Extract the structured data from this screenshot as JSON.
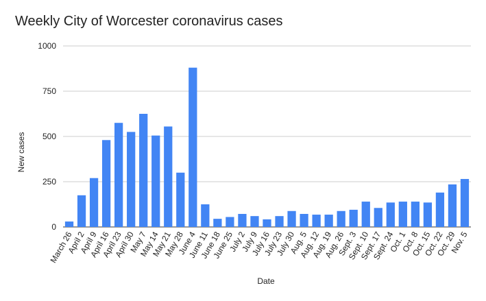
{
  "chart_data": {
    "type": "bar",
    "title": "Weekly City of Worcester coronavirus cases",
    "xlabel": "Date",
    "ylabel": "New cases",
    "ylim": [
      0,
      1000
    ],
    "yticks": [
      0,
      250,
      500,
      750,
      1000
    ],
    "grid": true,
    "legend": "none",
    "bar_color": "#4285f4",
    "categories": [
      "March 26",
      "April 2",
      "April 9",
      "April 16",
      "April 23",
      "April 30",
      "May 7",
      "May 14",
      "May 21",
      "May 28",
      "June 4",
      "June 11",
      "June 18",
      "June 25",
      "July 2",
      "July 9",
      "July 16",
      "July 23",
      "July 30",
      "Aug. 5",
      "Aug. 12",
      "Aug. 19",
      "Aug. 26",
      "Sept. 3",
      "Sept. 10",
      "Sept. 17",
      "Sept. 24",
      "Oct. 1",
      "Oct. 8",
      "Oct. 15",
      "Oct. 22",
      "Oct. 29",
      "Nov. 5"
    ],
    "values": [
      30,
      175,
      270,
      480,
      575,
      525,
      625,
      505,
      555,
      300,
      880,
      125,
      45,
      55,
      72,
      60,
      42,
      60,
      88,
      72,
      68,
      68,
      88,
      95,
      140,
      105,
      135,
      140,
      140,
      135,
      190,
      235,
      265
    ]
  }
}
